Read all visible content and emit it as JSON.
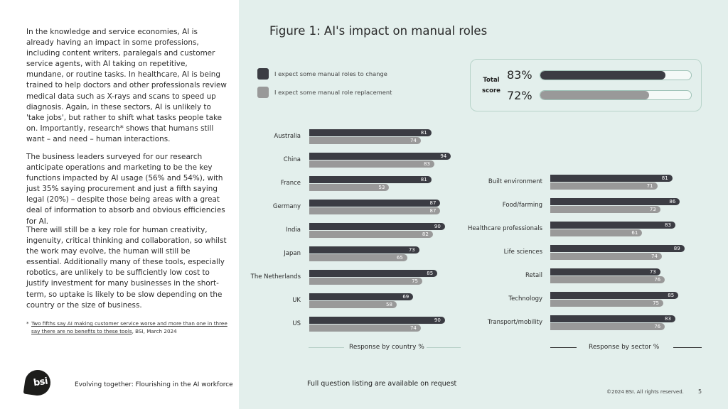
{
  "body_text": {
    "p1": "In the knowledge and service economies, AI is already having an impact in some professions, including content writers, paralegals and customer service agents, with AI taking on repetitive, mundane, or routine tasks. In healthcare, AI is being trained to help doctors and other professionals review medical data such as X-rays and scans to speed up diagnosis. Again, in these sectors, AI is unlikely to 'take jobs', but rather to shift what tasks people take on. Importantly, research* shows that humans still want – and need – human interactions.",
    "p2": "The business leaders surveyed for our research anticipate operations and marketing to be the key functions impacted by AI usage (56% and 54%), with just 35% saying procurement and just a fifth saying legal (20%) – despite those being areas with a great deal of information to absorb and obvious efficiencies for AI.",
    "p3": "There will still be a key role for human creativity, ingenuity, critical thinking and collaboration, so whilst the work may evolve, the human will still be essential. Additionally many of these tools, especially robotics, are unlikely to be sufficiently low cost to justify investment for many businesses in the short-term, so uptake is likely to be slow depending on the country or the size of business.",
    "footnote_mark": "*",
    "footnote_link": "Two fifths say AI making customer service worse and more than one in three say there are no benefits to these tools",
    "footnote_source": ", BSI, March 2024"
  },
  "footer": {
    "logo_text": "bsi",
    "doc_title": "Evolving together: Flourishing in the AI workforce",
    "note": "Full question listing are available on request",
    "copyright": "©2024 BSI. All rights reserved.",
    "page_number": "5"
  },
  "colors": {
    "dark": "#3b3c43",
    "light": "#999999",
    "panel": "#e3efec"
  },
  "chart_data": {
    "type": "bar",
    "orientation": "horizontal",
    "title": "Figure 1: AI's impact on manual roles",
    "legend": [
      {
        "label": "I expect some manual roles to change",
        "color": "#3b3c43"
      },
      {
        "label": "I expect some manual role replacement",
        "color": "#999999"
      }
    ],
    "total_score": {
      "label_line1": "Total",
      "label_line2": "score",
      "change": 83,
      "replacement": 72,
      "change_text": "83%",
      "replacement_text": "72%"
    },
    "xlim": [
      0,
      100
    ],
    "by_country": {
      "axis_title": "Response by country %",
      "categories": [
        "Australia",
        "China",
        "France",
        "Germany",
        "India",
        "Japan",
        "The Netherlands",
        "UK",
        "US"
      ],
      "series": [
        {
          "name": "I expect some manual roles to change",
          "values": [
            81,
            94,
            81,
            87,
            90,
            73,
            85,
            69,
            90
          ]
        },
        {
          "name": "I expect some manual role replacement",
          "values": [
            74,
            83,
            53,
            87,
            82,
            65,
            75,
            58,
            74
          ]
        }
      ]
    },
    "by_sector": {
      "axis_title": "Response by sector %",
      "categories": [
        "Built environment",
        "Food/farming",
        "Healthcare professionals",
        "Life sciences",
        "Retail",
        "Technology",
        "Transport/mobility"
      ],
      "series": [
        {
          "name": "I expect some manual roles to change",
          "values": [
            81,
            86,
            83,
            89,
            73,
            85,
            83
          ]
        },
        {
          "name": "I expect some manual role replacement",
          "values": [
            71,
            73,
            61,
            74,
            76,
            75,
            76
          ]
        }
      ]
    }
  }
}
